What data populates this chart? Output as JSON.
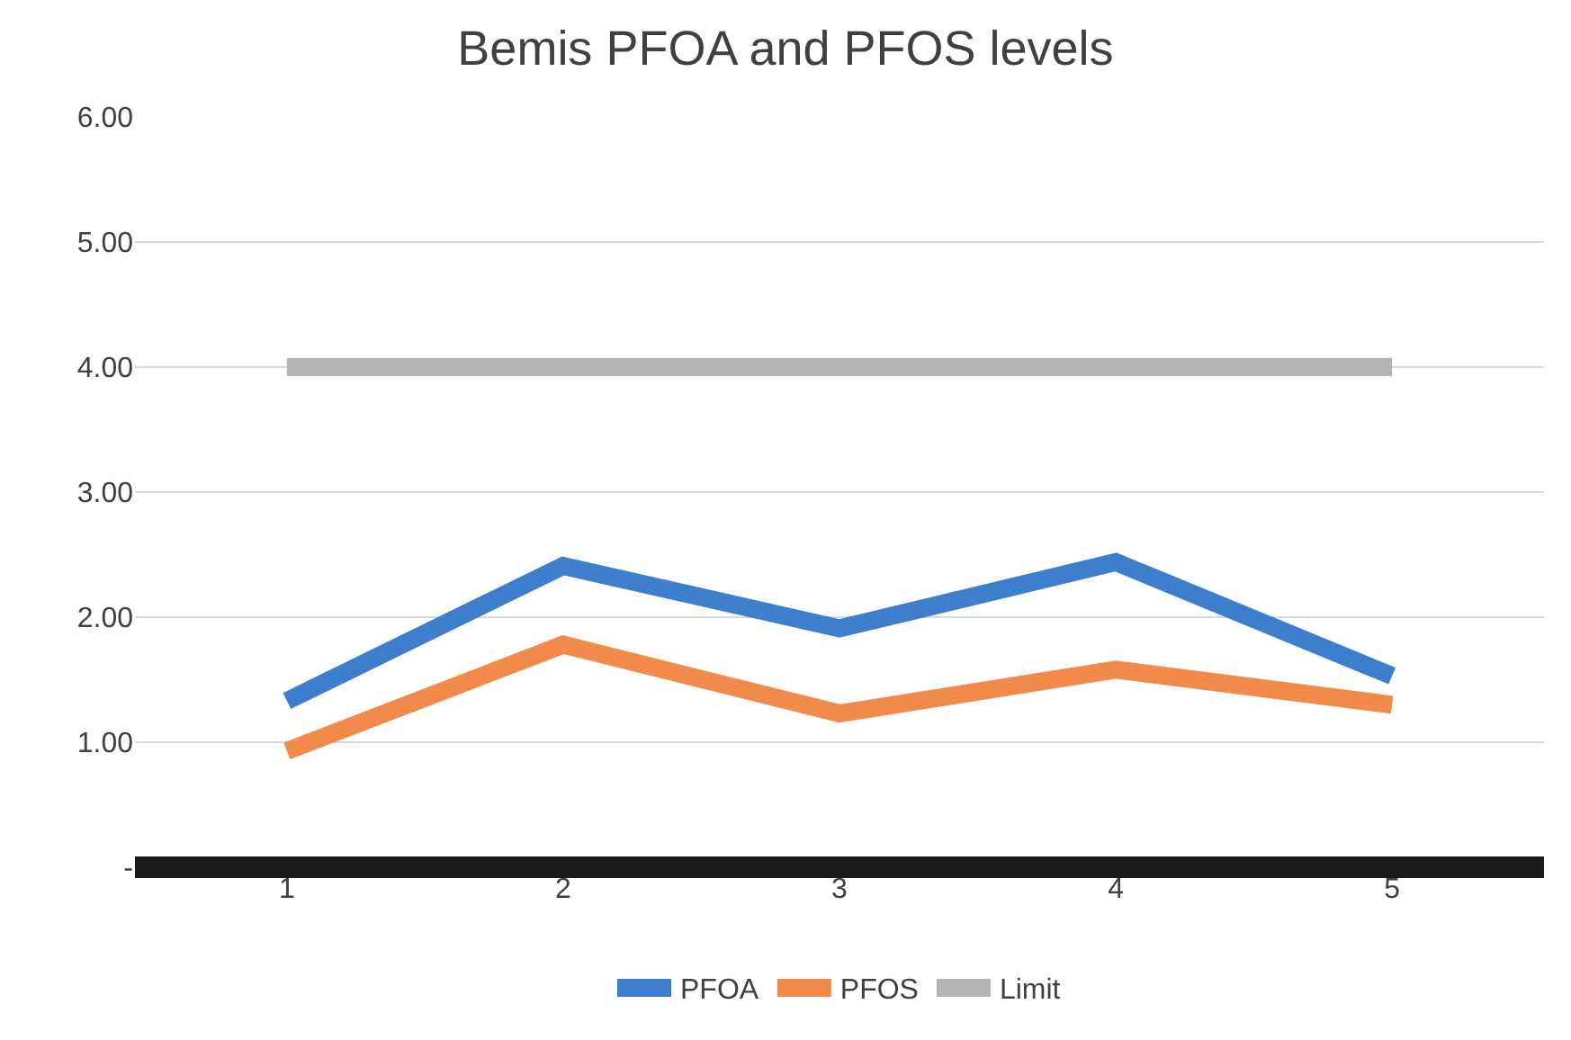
{
  "chart_data": {
    "type": "line",
    "title": "Bemis PFOA and PFOS levels",
    "categories": [
      "1",
      "2",
      "3",
      "4",
      "5"
    ],
    "series": [
      {
        "name": "PFOA",
        "color": "#3d7fcc",
        "values": [
          1.33,
          2.41,
          1.91,
          2.44,
          1.53
        ]
      },
      {
        "name": "PFOS",
        "color": "#f28a4c",
        "values": [
          0.93,
          1.78,
          1.23,
          1.58,
          1.3
        ]
      },
      {
        "name": "Limit",
        "color": "#b5b5b5",
        "values": [
          4,
          4,
          4,
          4,
          4
        ]
      }
    ],
    "ylim": [
      0,
      6
    ],
    "yticks": [
      {
        "value": 0,
        "label": "-"
      },
      {
        "value": 1,
        "label": "1.00"
      },
      {
        "value": 2,
        "label": "2.00"
      },
      {
        "value": 3,
        "label": "3.00"
      },
      {
        "value": 4,
        "label": "4.00"
      },
      {
        "value": 5,
        "label": "5.00"
      },
      {
        "value": 6,
        "label": "6.00"
      }
    ],
    "grid": "y",
    "legend": "bottom",
    "marker": "none",
    "line_style": "solid"
  }
}
